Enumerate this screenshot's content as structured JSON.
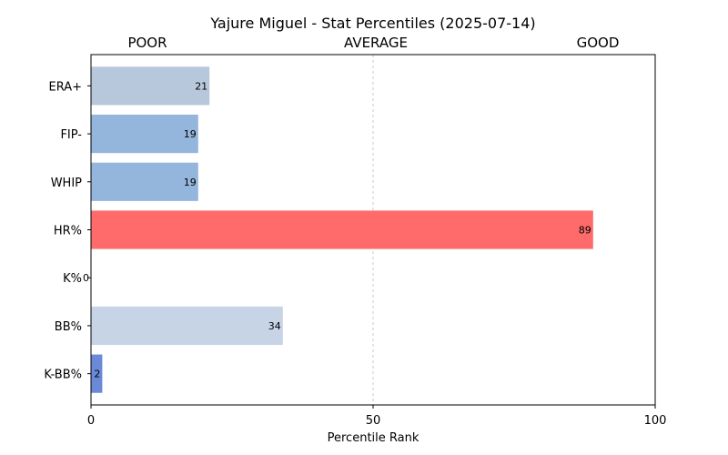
{
  "chart_data": {
    "type": "bar",
    "orientation": "horizontal",
    "title": "Yajure Miguel - Stat Percentiles (2025-07-14)",
    "xlabel": "Percentile Rank",
    "ylabel": "",
    "xlim": [
      0,
      100
    ],
    "xticks": [
      0,
      50,
      100
    ],
    "band_labels": [
      "POOR",
      "AVERAGE",
      "GOOD"
    ],
    "reference_line": 50,
    "categories": [
      "ERA+",
      "FIP-",
      "WHIP",
      "HR%",
      "K%",
      "BB%",
      "K-BB%"
    ],
    "values": [
      21,
      19,
      19,
      89,
      0,
      34,
      2
    ],
    "colors": [
      "#b8c8dc",
      "#94b6dc",
      "#94b6dc",
      "#ff6b6b",
      "#4a6fd0",
      "#c6d4e6",
      "#6a8ad8"
    ]
  }
}
